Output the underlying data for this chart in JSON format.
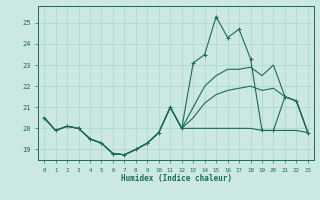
{
  "xlabel": "Humidex (Indice chaleur)",
  "bg_color": "#cce8e2",
  "grid_color": "#aad4cc",
  "line_color": "#1a6b58",
  "xlim": [
    -0.5,
    23.5
  ],
  "ylim": [
    18.5,
    25.8
  ],
  "xticks": [
    0,
    1,
    2,
    3,
    4,
    5,
    6,
    7,
    8,
    9,
    10,
    11,
    12,
    13,
    14,
    15,
    16,
    17,
    18,
    19,
    20,
    21,
    22,
    23
  ],
  "yticks": [
    19,
    20,
    21,
    22,
    23,
    24,
    25
  ],
  "s1": [
    20.5,
    19.9,
    20.1,
    20.0,
    19.5,
    19.3,
    18.8,
    18.75,
    19.0,
    19.3,
    19.8,
    21.0,
    20.0,
    23.1,
    23.5,
    25.3,
    24.3,
    24.7,
    23.3,
    19.9,
    19.9,
    21.5,
    21.3,
    19.8
  ],
  "s2": [
    20.5,
    19.9,
    20.1,
    20.0,
    19.5,
    19.3,
    18.8,
    18.75,
    19.0,
    19.3,
    19.8,
    21.0,
    20.0,
    21.0,
    22.0,
    22.5,
    22.8,
    22.8,
    22.9,
    22.5,
    23.0,
    21.5,
    21.3,
    19.8
  ],
  "s3": [
    20.5,
    19.9,
    20.1,
    20.0,
    19.5,
    19.3,
    18.8,
    18.75,
    19.0,
    19.3,
    19.8,
    21.0,
    20.0,
    20.5,
    21.2,
    21.6,
    21.8,
    21.9,
    22.0,
    21.8,
    21.9,
    21.5,
    21.3,
    19.8
  ],
  "s4": [
    20.5,
    19.9,
    20.1,
    20.0,
    19.5,
    19.3,
    18.8,
    18.75,
    19.0,
    19.3,
    19.8,
    21.0,
    20.0,
    20.0,
    20.0,
    20.0,
    20.0,
    20.0,
    20.0,
    19.9,
    19.9,
    19.9,
    19.9,
    19.8
  ]
}
